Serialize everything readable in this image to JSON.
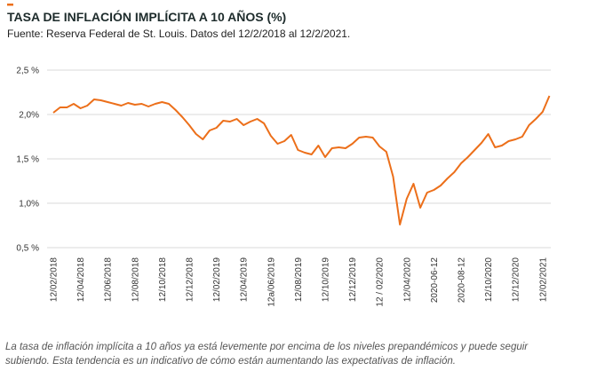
{
  "chart_data": {
    "type": "line",
    "title": "TASA DE INFLACIÓN IMPLÍCITA A 10 AÑOS (%)",
    "subtitle": "Fuente: Reserva Federal de St. Louis. Datos del 12/2/2018 al 12/2/2021.",
    "caption": [
      "La tasa de inflación implícita a 10 años ya está levemente por encima de los niveles prepandémicos y puede seguir",
      "subiendo. Esta tendencia es un indicativo de cómo están aumentando las expectativas de inflación."
    ],
    "categories": [
      "12/02/2018",
      null,
      null,
      null,
      "12/04/2018",
      null,
      null,
      null,
      "12/06/2018",
      null,
      null,
      null,
      "12/08/2018",
      null,
      null,
      null,
      "12/10/2018",
      null,
      null,
      null,
      "12/12/2018",
      null,
      null,
      null,
      "12/02/2019",
      null,
      null,
      null,
      "12/04/2019",
      null,
      null,
      null,
      "12a/06/2019",
      null,
      null,
      null,
      "12/08/2019",
      null,
      null,
      null,
      "12/10/2019",
      null,
      null,
      null,
      "12/12/2019",
      null,
      null,
      null,
      "12 / 02/2020",
      null,
      null,
      null,
      "12/04/2020",
      null,
      null,
      null,
      "2020-06-12",
      null,
      null,
      null,
      "2020-08-12",
      null,
      null,
      null,
      "12/10/2020",
      null,
      null,
      null,
      "12/12/2020",
      null,
      null,
      null,
      "12/02/2021",
      null
    ],
    "series": [
      {
        "name": "Tasa de inflación implícita",
        "color": "#ec6f1a",
        "values": [
          2.02,
          2.08,
          2.08,
          2.12,
          2.07,
          2.1,
          2.17,
          2.16,
          2.14,
          2.12,
          2.1,
          2.13,
          2.11,
          2.12,
          2.09,
          2.12,
          2.14,
          2.12,
          2.05,
          1.97,
          1.88,
          1.78,
          1.72,
          1.82,
          1.85,
          1.93,
          1.92,
          1.95,
          1.88,
          1.92,
          1.95,
          1.9,
          1.76,
          1.67,
          1.7,
          1.77,
          1.6,
          1.57,
          1.55,
          1.65,
          1.52,
          1.62,
          1.63,
          1.62,
          1.67,
          1.74,
          1.75,
          1.74,
          1.64,
          1.58,
          1.3,
          0.76,
          1.05,
          1.22,
          0.95,
          1.12,
          1.15,
          1.2,
          1.28,
          1.35,
          1.45,
          1.52,
          1.6,
          1.68,
          1.78,
          1.63,
          1.65,
          1.7,
          1.72,
          1.75,
          1.88,
          1.95,
          2.03,
          2.21
        ]
      }
    ],
    "ylim": [
      0.5,
      2.5
    ],
    "yticks": [
      {
        "value": 0.5,
        "label": "0,5 %"
      },
      {
        "value": 1.0,
        "label": "1,0%"
      },
      {
        "value": 1.5,
        "label": "1,5 %"
      },
      {
        "value": 2.0,
        "label": "2,0%"
      },
      {
        "value": 2.5,
        "label": "2,5 %"
      }
    ],
    "grid": true
  }
}
